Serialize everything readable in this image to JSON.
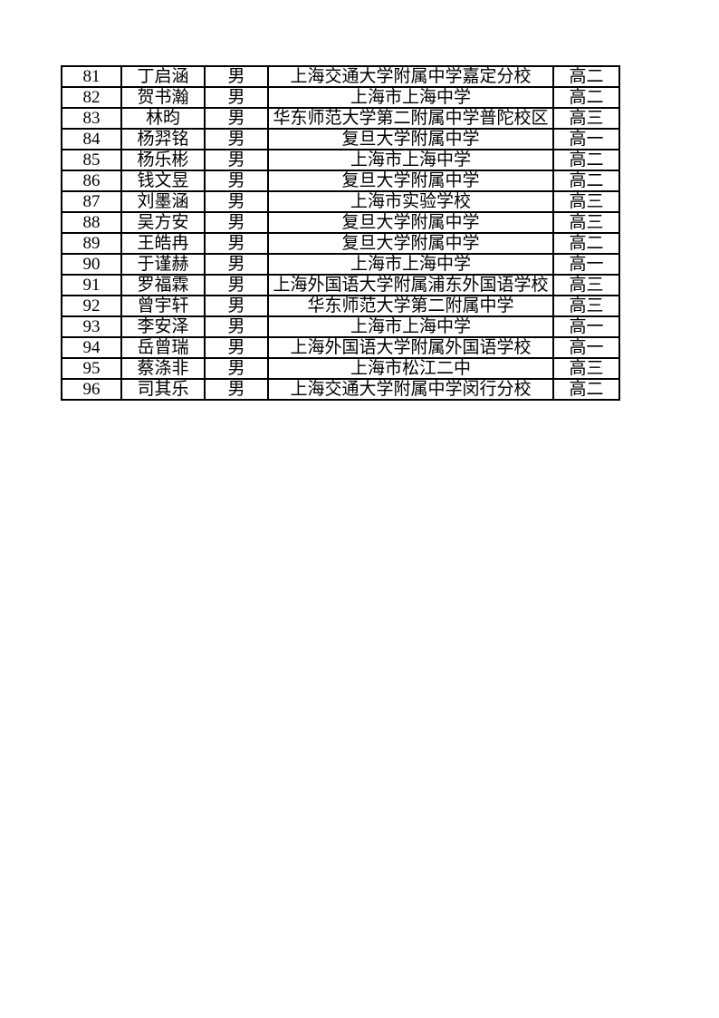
{
  "page": {
    "background_color": "#ffffff",
    "text_color": "#000000",
    "border_color": "#000000"
  },
  "table": {
    "column_keys": [
      "number",
      "name",
      "gender",
      "school",
      "grade"
    ],
    "rows": [
      [
        "81",
        "丁启涵",
        "男",
        "上海交通大学附属中学嘉定分校",
        "高二"
      ],
      [
        "82",
        "贺书瀚",
        "男",
        "上海市上海中学",
        "高二"
      ],
      [
        "83",
        "林昀",
        "男",
        "华东师范大学第二附属中学普陀校区",
        "高三"
      ],
      [
        "84",
        "杨羿铭",
        "男",
        "复旦大学附属中学",
        "高一"
      ],
      [
        "85",
        "杨乐彬",
        "男",
        "上海市上海中学",
        "高二"
      ],
      [
        "86",
        "钱文昱",
        "男",
        "复旦大学附属中学",
        "高二"
      ],
      [
        "87",
        "刘墨涵",
        "男",
        "上海市实验学校",
        "高三"
      ],
      [
        "88",
        "吴方安",
        "男",
        "复旦大学附属中学",
        "高三"
      ],
      [
        "89",
        "王皓冉",
        "男",
        "复旦大学附属中学",
        "高二"
      ],
      [
        "90",
        "于谨赫",
        "男",
        "上海市上海中学",
        "高一"
      ],
      [
        "91",
        "罗福霖",
        "男",
        "上海外国语大学附属浦东外国语学校",
        "高三"
      ],
      [
        "92",
        "曾宇轩",
        "男",
        "华东师范大学第二附属中学",
        "高三"
      ],
      [
        "93",
        "李安泽",
        "男",
        "上海市上海中学",
        "高一"
      ],
      [
        "94",
        "岳曾瑞",
        "男",
        "上海外国语大学附属外国语学校",
        "高一"
      ],
      [
        "95",
        "蔡涤非",
        "男",
        "上海市松江二中",
        "高三"
      ],
      [
        "96",
        "司其乐",
        "男",
        "上海交通大学附属中学闵行分校",
        "高二"
      ]
    ]
  }
}
